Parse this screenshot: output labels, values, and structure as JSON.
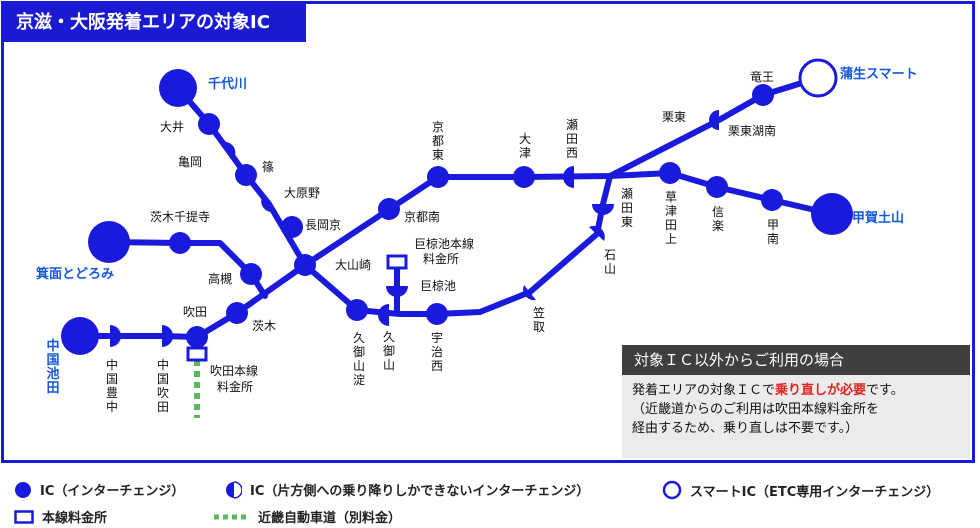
{
  "title": "京滋・大阪発着エリアの対象IC",
  "stations": {
    "tatsuo": "竜王",
    "gamo": "蒲生スマート",
    "ritto": "栗東",
    "ritto_konan": "栗東湖南",
    "kusatsu_tagami": "草津田上",
    "shigaraki": "信楽",
    "konan": "甲南",
    "koka_tsuchiyama": "甲賀土山",
    "seta_nishi": "瀬田西",
    "seta_higashi": "瀬田東",
    "ishiyama": "石山",
    "otsu": "大津",
    "kyoto_higashi": "京都東",
    "kyoto_minami": "京都南",
    "kasatori": "笠取",
    "ogura_honsen": "巨椋池本線料金所",
    "ogura": "巨椋池",
    "uji_nishi": "宇治西",
    "kumiyama": "久御山",
    "kumiyama_yodo": "久御山淀",
    "oyamazaki": "大山崎",
    "nagaokakyo": "長岡京",
    "oharano": "大原野",
    "shino": "篠",
    "kameoka": "亀岡",
    "ooi": "大井",
    "chiyokawa": "千代川",
    "ibaraki_senri": "茨木千提寺",
    "minoh": "箕面とどろみ",
    "takatsuki": "高槻",
    "ibaraki": "茨木",
    "suita": "吹田",
    "suita_honsen": "吹田本線料金所",
    "chugoku_suita": "中国吹田",
    "chugoku_toyonaka": "中国豊中",
    "chugoku_ikeda": "中国池田"
  },
  "notice": {
    "heading": "対象ＩＣ以外からご利用の場合",
    "line1_pre": "発着エリアの対象ＩＣで",
    "line1_em": "乗り直しが必要",
    "line1_post": "です。",
    "line2": "（近畿道からのご利用は吹田本線料金所を",
    "line3": "経由するため、乗り直しは不要です。）"
  },
  "legend": {
    "ic": "IC（インターチェンジ）",
    "half_ic": "IC（片方側への乗り降りしかできないインターチェンジ）",
    "smart_ic": "スマートIC（ETC専用インターチェンジ）",
    "toll": "本線料金所",
    "kinki": "近畿自動車道（別料金）"
  },
  "colors": {
    "route": "#1a1adc",
    "station_label_blue": "#1458dc",
    "notice_head": "#3f3f3f",
    "notice_bg": "#ebebeb",
    "emphasis": "#e0231e",
    "kinki_dash": "#5cb85c"
  },
  "icons": {
    "ic": "filled-circle-icon",
    "half_ic": "half-circle-icon",
    "smart_ic": "ring-icon",
    "toll": "rectangle-icon"
  }
}
